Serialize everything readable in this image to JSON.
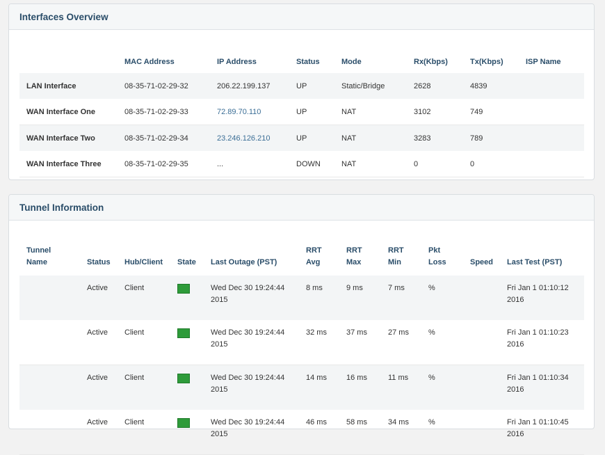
{
  "interfaces_overview": {
    "title": "Interfaces Overview",
    "columns": [
      "",
      "MAC Address",
      "IP Address",
      "Status",
      "Mode",
      "Rx(Kbps)",
      "Tx(Kbps)",
      "ISP Name"
    ],
    "rows": [
      {
        "name": "LAN Interface",
        "mac": "08-35-71-02-29-32",
        "ip": "206.22.199.137",
        "status": "UP",
        "mode": "Static/Bridge",
        "rx": "2628",
        "tx": "4839",
        "isp": ""
      },
      {
        "name": "WAN Interface One",
        "mac": "08-35-71-02-29-33",
        "ip": "72.89.70.110",
        "status": "UP",
        "mode": "NAT",
        "rx": "3102",
        "tx": "749",
        "isp": ""
      },
      {
        "name": "WAN Interface Two",
        "mac": "08-35-71-02-29-34",
        "ip": "23.246.126.210",
        "status": "UP",
        "mode": "NAT",
        "rx": "3283",
        "tx": "789",
        "isp": ""
      },
      {
        "name": "WAN Interface Three",
        "mac": "08-35-71-02-29-35",
        "ip": "...",
        "status": "DOWN",
        "mode": "NAT",
        "rx": "0",
        "tx": "0",
        "isp": ""
      }
    ]
  },
  "tunnel_information": {
    "title": "Tunnel Information",
    "columns": {
      "tunnel_name": [
        "Tunnel",
        "Name"
      ],
      "status": "Status",
      "hub_client": "Hub/Client",
      "state": "State",
      "last_outage": "Last Outage (PST)",
      "rrt_avg": [
        "RRT",
        "Avg"
      ],
      "rrt_max": [
        "RRT",
        "Max"
      ],
      "rrt_min": [
        "RRT",
        "Min"
      ],
      "pkt_loss": [
        "Pkt",
        "Loss"
      ],
      "speed": "Speed",
      "last_test": "Last Test (PST)"
    },
    "state_color": "#2e9b3a",
    "rows": [
      {
        "name": "",
        "status": "Active",
        "hub_client": "Client",
        "state": "green-square",
        "last_outage": [
          "Wed Dec 30 19:24:44",
          "2015"
        ],
        "rrt_avg": "8 ms",
        "rrt_max": "9 ms",
        "rrt_min": "7 ms",
        "pkt_loss": "%",
        "speed": "",
        "last_test": [
          "Fri Jan 1 01:10:12",
          "2016"
        ]
      },
      {
        "name": "",
        "status": "Active",
        "hub_client": "Client",
        "state": "green-square",
        "last_outage": [
          "Wed Dec 30 19:24:44",
          "2015"
        ],
        "rrt_avg": "32 ms",
        "rrt_max": "37 ms",
        "rrt_min": "27 ms",
        "pkt_loss": "%",
        "speed": "",
        "last_test": [
          "Fri Jan 1 01:10:23",
          "2016"
        ]
      },
      {
        "name": "",
        "status": "Active",
        "hub_client": "Client",
        "state": "green-square",
        "last_outage": [
          "Wed Dec 30 19:24:44",
          "2015"
        ],
        "rrt_avg": "14 ms",
        "rrt_max": "16 ms",
        "rrt_min": "11 ms",
        "pkt_loss": "%",
        "speed": "",
        "last_test": [
          "Fri Jan 1 01:10:34",
          "2016"
        ]
      },
      {
        "name": "",
        "status": "Active",
        "hub_client": "Client",
        "state": "green-square",
        "last_outage": [
          "Wed Dec 30 19:24:44",
          "2015"
        ],
        "rrt_avg": "46 ms",
        "rrt_max": "58 ms",
        "rrt_min": "34 ms",
        "pkt_loss": "%",
        "speed": "",
        "last_test": [
          "Fri Jan 1 01:10:45",
          "2016"
        ]
      }
    ]
  }
}
